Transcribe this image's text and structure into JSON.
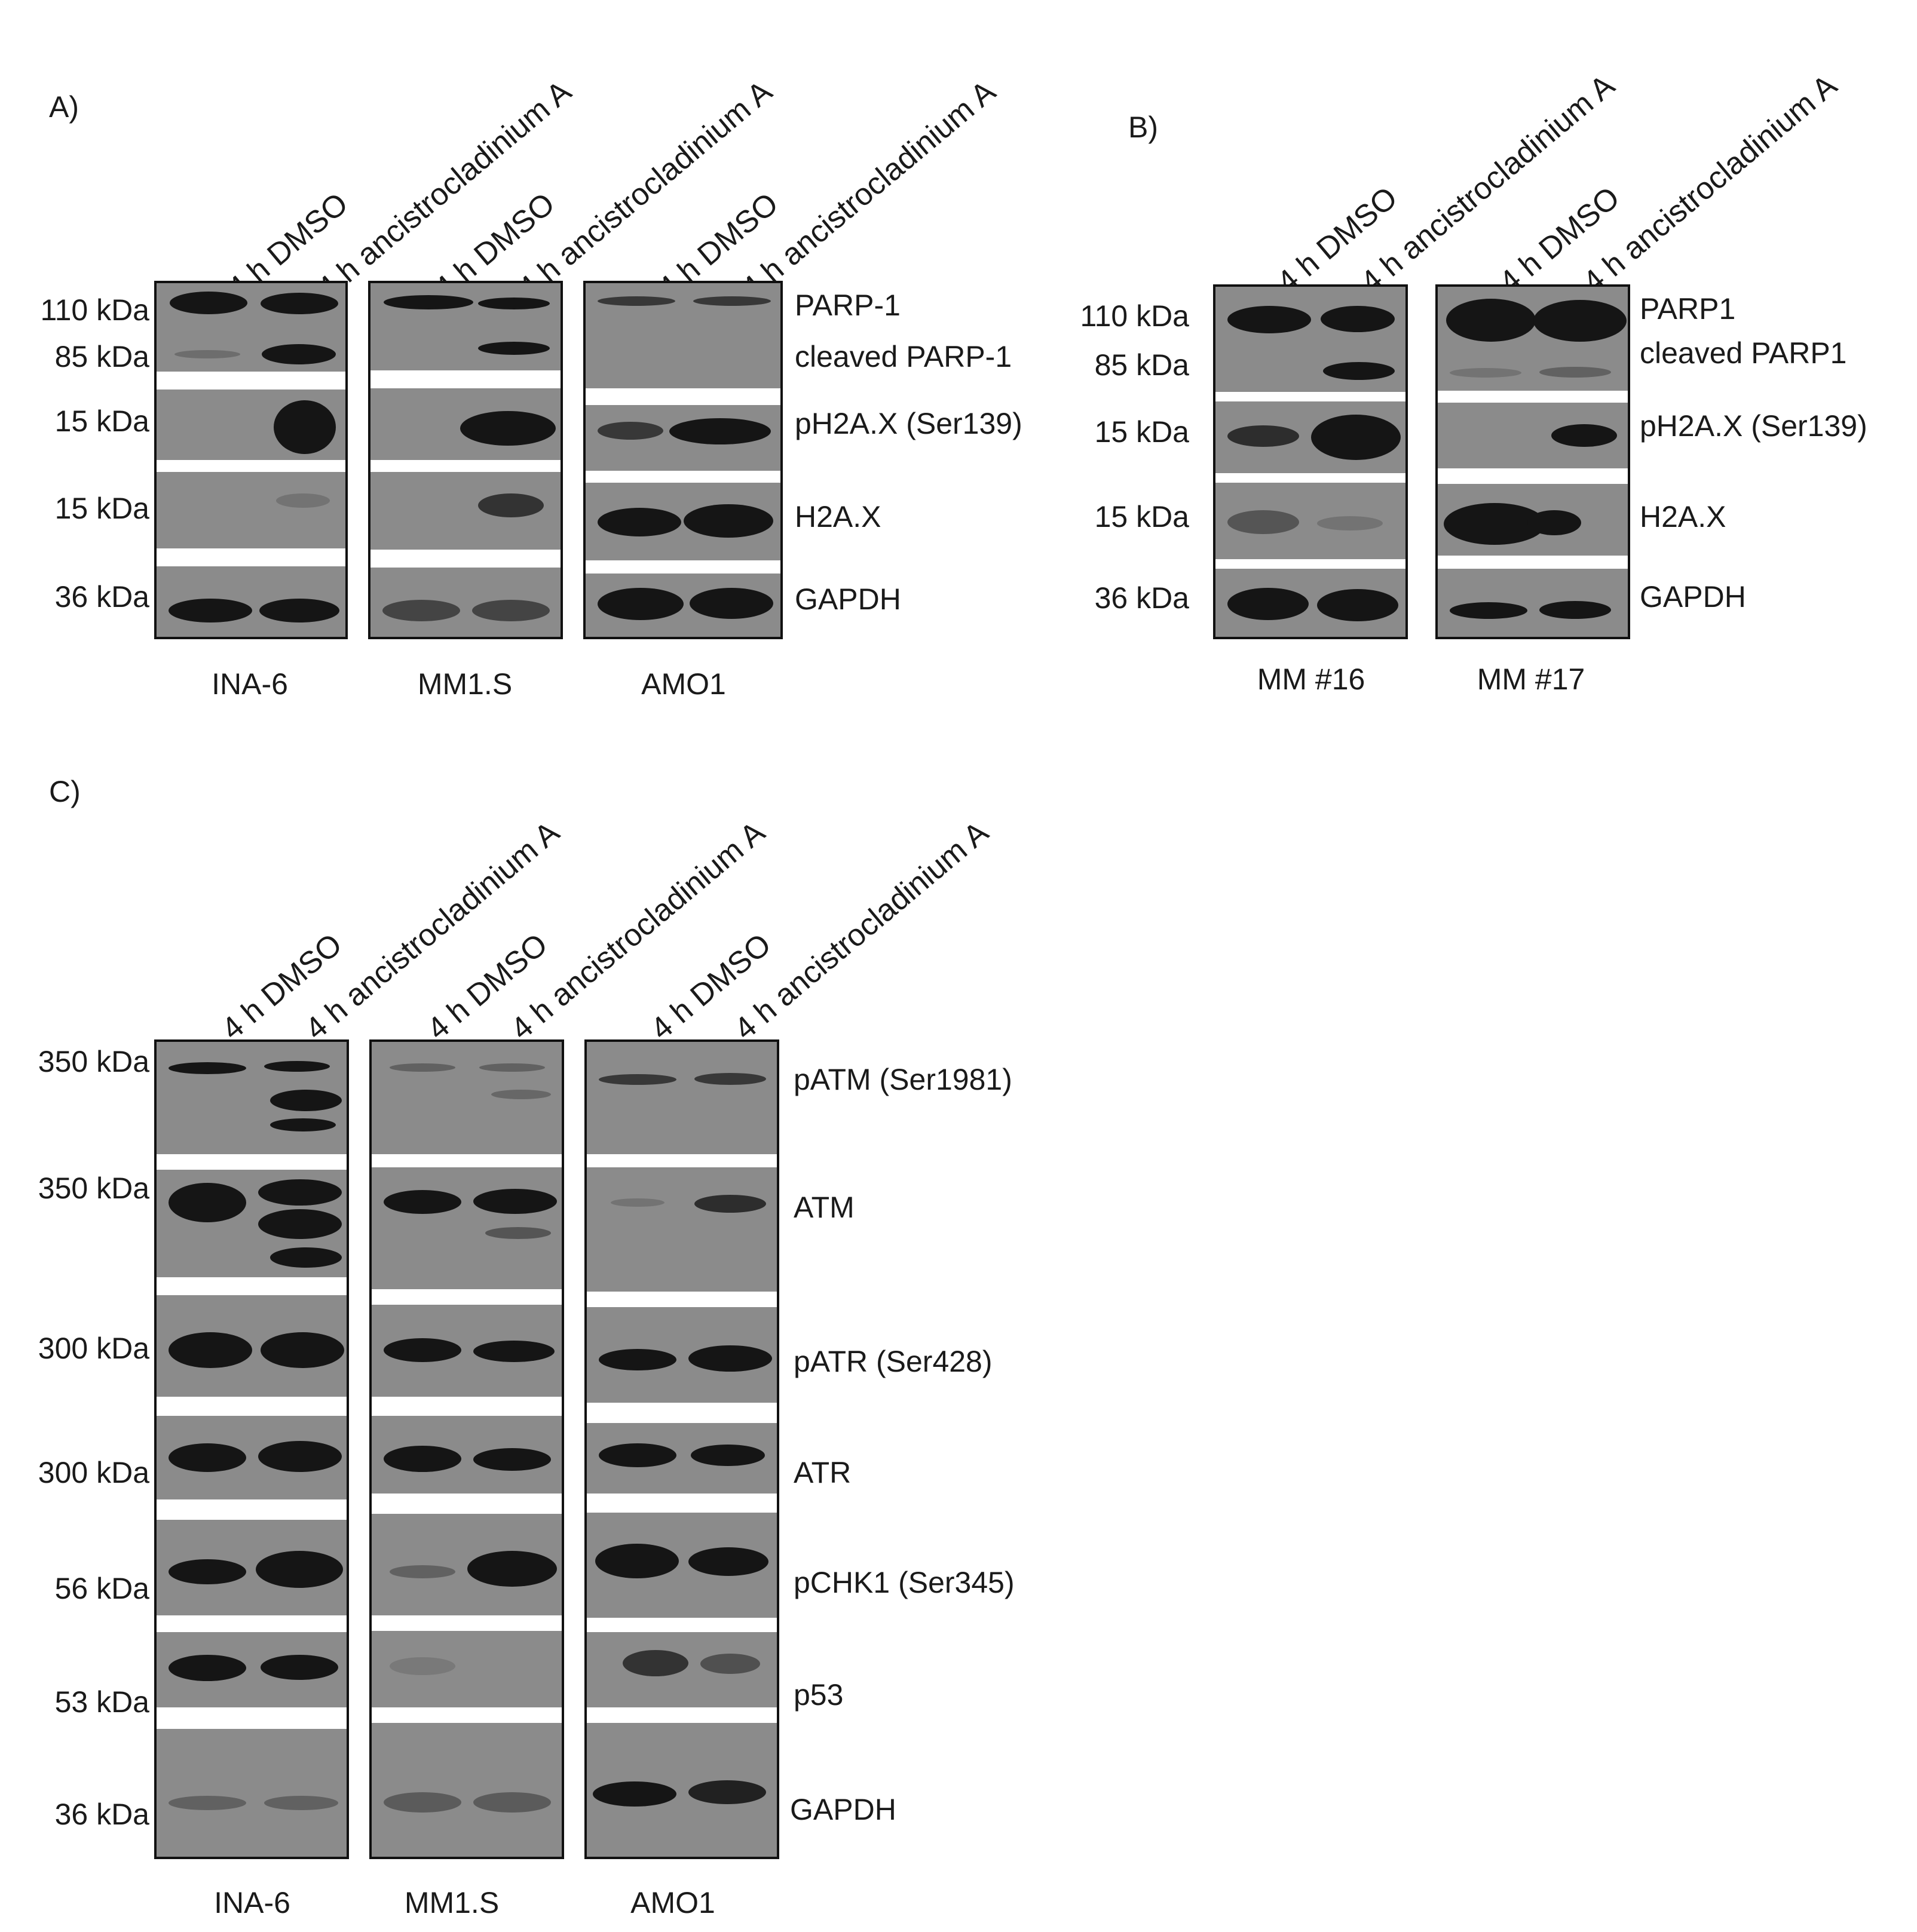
{
  "panels": {
    "A": {
      "letter": "A)",
      "lanes": [
        "4 h DMSO",
        "4 h ancistrocladinium A",
        "4 h DMSO",
        "4 h ancistrocladinium A",
        "4 h DMSO",
        "4 h ancistrocladinium A"
      ],
      "mw_markers": [
        "110 kDa",
        "85 kDa",
        "15 kDa",
        "15 kDa",
        "36 kDa"
      ],
      "proteins": [
        "PARP-1",
        "cleaved PARP-1",
        "pH2A.X (Ser139)",
        "H2A.X",
        "GAPDH"
      ],
      "cell_lines": [
        "INA-6",
        "MM1.S",
        "AMO1"
      ]
    },
    "B": {
      "letter": "B)",
      "lanes": [
        "4 h DMSO",
        "4 h ancistrocladinium A",
        "4 h DMSO",
        "4 h ancistrocladinium A"
      ],
      "mw_markers": [
        "110 kDa",
        "85 kDa",
        "15 kDa",
        "15 kDa",
        "36 kDa"
      ],
      "proteins": [
        "PARP1",
        "cleaved PARP1",
        "pH2A.X (Ser139)",
        "H2A.X",
        "GAPDH"
      ],
      "cell_lines": [
        "MM #16",
        "MM #17"
      ]
    },
    "C": {
      "letter": "C)",
      "lanes": [
        "4 h DMSO",
        "4 h ancistrocladinium A",
        "4 h DMSO",
        "4 h ancistrocladinium A",
        "4 h DMSO",
        "4 h ancistrocladinium A"
      ],
      "mw_markers": [
        "350 kDa",
        "350 kDa",
        "300 kDa",
        "300 kDa",
        "56 kDa",
        "53 kDa",
        "36 kDa"
      ],
      "proteins": [
        "pATM (Ser1981)",
        "ATM",
        "pATR (Ser428)",
        "ATR",
        "pCHK1 (Ser345)",
        "p53",
        "GAPDH"
      ],
      "cell_lines": [
        "INA-6",
        "MM1.S",
        "AMO1"
      ]
    }
  }
}
